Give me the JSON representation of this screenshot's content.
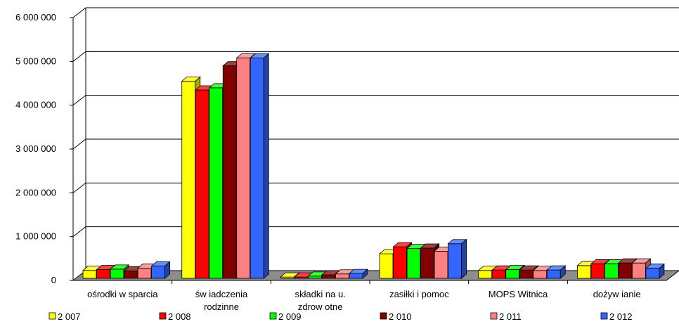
{
  "chart_data": {
    "type": "bar",
    "title": "",
    "xlabel": "",
    "ylabel": "",
    "ylim": [
      0,
      6000000
    ],
    "yticks": [
      0,
      1000000,
      2000000,
      3000000,
      4000000,
      5000000,
      6000000
    ],
    "ytick_labels": [
      "0",
      "1 000 000",
      "2 000 000",
      "3 000 000",
      "4 000 000",
      "5 000 000",
      "6 000 000"
    ],
    "grid": true,
    "legend_position": "bottom",
    "categories": [
      [
        "ośrodki w sparcia"
      ],
      [
        "św iadczenia",
        "rodzinne"
      ],
      [
        "składki na u.",
        "zdrow otne"
      ],
      [
        "zasiłki i pomoc"
      ],
      [
        "MOPS Witnica"
      ],
      [
        "dożyw ianie"
      ]
    ],
    "series": [
      {
        "name": "2 007",
        "color": "#ffff00",
        "values": [
          180000,
          4500000,
          30000,
          560000,
          180000,
          290000
        ]
      },
      {
        "name": "2 008",
        "color": "#ff0000",
        "values": [
          200000,
          4300000,
          30000,
          720000,
          190000,
          330000
        ]
      },
      {
        "name": "2 009",
        "color": "#00ff00",
        "values": [
          210000,
          4350000,
          50000,
          680000,
          200000,
          330000
        ]
      },
      {
        "name": "2 010",
        "color": "#800000",
        "values": [
          170000,
          4850000,
          80000,
          690000,
          190000,
          350000
        ]
      },
      {
        "name": "2 011",
        "color": "#ff8080",
        "values": [
          230000,
          5030000,
          100000,
          620000,
          180000,
          350000
        ]
      },
      {
        "name": "2 012",
        "color": "#3366ff",
        "values": [
          280000,
          5030000,
          110000,
          790000,
          190000,
          230000
        ]
      }
    ]
  }
}
